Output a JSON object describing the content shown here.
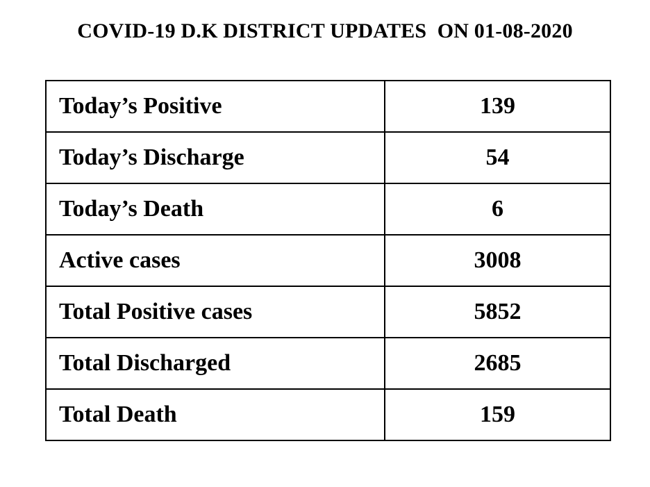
{
  "document": {
    "title": "COVID-19 D.K DISTRICT UPDATES  ON 01-08-2020"
  },
  "table": {
    "rows": [
      {
        "label": "Today’s Positive",
        "value": "139"
      },
      {
        "label": "Today’s Discharge",
        "value": "54"
      },
      {
        "label": "Today’s Death",
        "value": "6"
      },
      {
        "label": "Active cases",
        "value": "3008"
      },
      {
        "label": "Total Positive cases",
        "value": "5852"
      },
      {
        "label": "Total Discharged",
        "value": "2685"
      },
      {
        "label": "Total Death",
        "value": "159"
      }
    ]
  }
}
